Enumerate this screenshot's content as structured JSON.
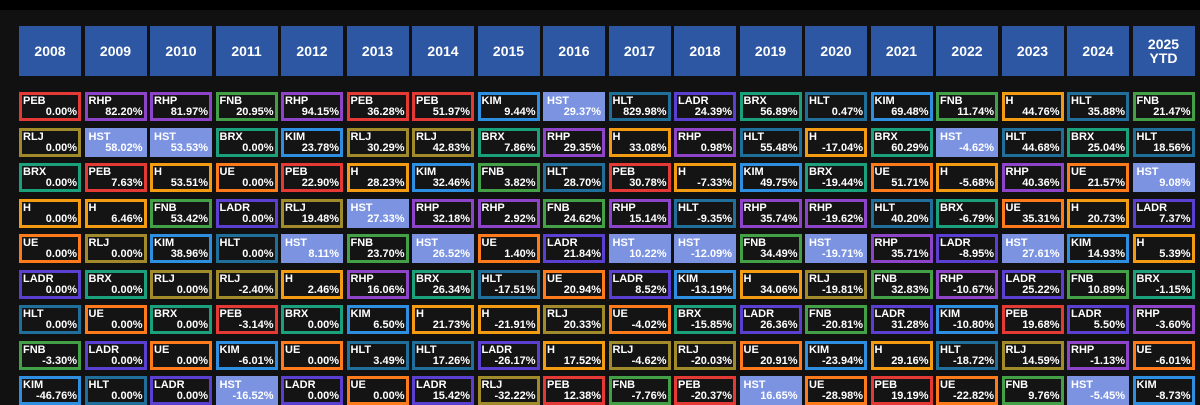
{
  "chart_data": {
    "type": "table",
    "columns": [
      "2008",
      "2009",
      "2010",
      "2011",
      "2012",
      "2013",
      "2014",
      "2015",
      "2016",
      "2017",
      "2018",
      "2019",
      "2020",
      "2021",
      "2022",
      "2023",
      "2024",
      "2025\nYTD"
    ],
    "colors": {
      "PEB": "#e53935",
      "RHP": "#8e44c9",
      "FNB": "#43a047",
      "KIM": "#2e8fe0",
      "HST": "#7b93e0",
      "HLT": "#1f6f9a",
      "LADR": "#5a3fd0",
      "BRX": "#1aa07a",
      "H": "#f39c12",
      "RLJ": "#a08a2a",
      "UE": "#ff7a1a"
    },
    "highlight_ticker": "HST",
    "rows": [
      [
        [
          "PEB",
          "0.00%"
        ],
        [
          "RHP",
          "82.20%"
        ],
        [
          "RHP",
          "81.97%"
        ],
        [
          "FNB",
          "20.95%"
        ],
        [
          "RHP",
          "94.15%"
        ],
        [
          "PEB",
          "36.28%"
        ],
        [
          "PEB",
          "51.97%"
        ],
        [
          "KIM",
          "9.44%"
        ],
        [
          "HST",
          "29.37%"
        ],
        [
          "HLT",
          "829.98%"
        ],
        [
          "LADR",
          "24.39%"
        ],
        [
          "BRX",
          "56.89%"
        ],
        [
          "HLT",
          "0.47%"
        ],
        [
          "KIM",
          "69.48%"
        ],
        [
          "FNB",
          "11.74%"
        ],
        [
          "H",
          "44.76%"
        ],
        [
          "HLT",
          "35.88%"
        ],
        [
          "FNB",
          "21.47%"
        ]
      ],
      [
        [
          "RLJ",
          "0.00%"
        ],
        [
          "HST",
          "58.02%"
        ],
        [
          "HST",
          "53.53%"
        ],
        [
          "BRX",
          "0.00%"
        ],
        [
          "KIM",
          "23.78%"
        ],
        [
          "RLJ",
          "30.29%"
        ],
        [
          "RLJ",
          "42.83%"
        ],
        [
          "BRX",
          "7.86%"
        ],
        [
          "RHP",
          "29.35%"
        ],
        [
          "H",
          "33.08%"
        ],
        [
          "RHP",
          "0.98%"
        ],
        [
          "HLT",
          "55.48%"
        ],
        [
          "H",
          "-17.04%"
        ],
        [
          "BRX",
          "60.29%"
        ],
        [
          "HST",
          "-4.62%"
        ],
        [
          "HLT",
          "44.68%"
        ],
        [
          "BRX",
          "25.04%"
        ],
        [
          "HLT",
          "18.56%"
        ]
      ],
      [
        [
          "BRX",
          "0.00%"
        ],
        [
          "PEB",
          "7.63%"
        ],
        [
          "H",
          "53.51%"
        ],
        [
          "UE",
          "0.00%"
        ],
        [
          "PEB",
          "22.90%"
        ],
        [
          "H",
          "28.23%"
        ],
        [
          "KIM",
          "32.46%"
        ],
        [
          "FNB",
          "3.82%"
        ],
        [
          "HLT",
          "28.70%"
        ],
        [
          "PEB",
          "30.78%"
        ],
        [
          "H",
          "-7.33%"
        ],
        [
          "KIM",
          "49.75%"
        ],
        [
          "BRX",
          "-19.44%"
        ],
        [
          "UE",
          "51.71%"
        ],
        [
          "H",
          "-5.68%"
        ],
        [
          "RHP",
          "40.36%"
        ],
        [
          "UE",
          "21.57%"
        ],
        [
          "HST",
          "9.08%"
        ]
      ],
      [
        [
          "H",
          "0.00%"
        ],
        [
          "H",
          "6.46%"
        ],
        [
          "FNB",
          "53.42%"
        ],
        [
          "LADR",
          "0.00%"
        ],
        [
          "RLJ",
          "19.48%"
        ],
        [
          "HST",
          "27.33%"
        ],
        [
          "RHP",
          "32.18%"
        ],
        [
          "RHP",
          "2.92%"
        ],
        [
          "FNB",
          "24.62%"
        ],
        [
          "RHP",
          "15.14%"
        ],
        [
          "HLT",
          "-9.35%"
        ],
        [
          "RHP",
          "35.74%"
        ],
        [
          "RHP",
          "-19.62%"
        ],
        [
          "HLT",
          "40.20%"
        ],
        [
          "BRX",
          "-6.79%"
        ],
        [
          "UE",
          "35.31%"
        ],
        [
          "H",
          "20.73%"
        ],
        [
          "LADR",
          "7.37%"
        ]
      ],
      [
        [
          "UE",
          "0.00%"
        ],
        [
          "RLJ",
          "0.00%"
        ],
        [
          "KIM",
          "38.96%"
        ],
        [
          "HLT",
          "0.00%"
        ],
        [
          "HST",
          "8.11%"
        ],
        [
          "FNB",
          "23.70%"
        ],
        [
          "HST",
          "26.52%"
        ],
        [
          "UE",
          "1.40%"
        ],
        [
          "LADR",
          "21.84%"
        ],
        [
          "HST",
          "10.22%"
        ],
        [
          "HST",
          "-12.09%"
        ],
        [
          "FNB",
          "34.49%"
        ],
        [
          "HST",
          "-19.71%"
        ],
        [
          "RHP",
          "35.71%"
        ],
        [
          "LADR",
          "-8.95%"
        ],
        [
          "HST",
          "27.61%"
        ],
        [
          "KIM",
          "14.93%"
        ],
        [
          "H",
          "5.39%"
        ]
      ],
      [
        [
          "LADR",
          "0.00%"
        ],
        [
          "BRX",
          "0.00%"
        ],
        [
          "RLJ",
          "0.00%"
        ],
        [
          "RLJ",
          "-2.40%"
        ],
        [
          "H",
          "2.46%"
        ],
        [
          "RHP",
          "16.06%"
        ],
        [
          "BRX",
          "26.34%"
        ],
        [
          "HLT",
          "-17.51%"
        ],
        [
          "UE",
          "20.94%"
        ],
        [
          "LADR",
          "8.52%"
        ],
        [
          "KIM",
          "-13.19%"
        ],
        [
          "H",
          "34.06%"
        ],
        [
          "RLJ",
          "-19.81%"
        ],
        [
          "FNB",
          "32.83%"
        ],
        [
          "RHP",
          "-10.67%"
        ],
        [
          "LADR",
          "25.22%"
        ],
        [
          "FNB",
          "10.89%"
        ],
        [
          "BRX",
          "-1.15%"
        ]
      ],
      [
        [
          "HLT",
          "0.00%"
        ],
        [
          "UE",
          "0.00%"
        ],
        [
          "BRX",
          "0.00%"
        ],
        [
          "PEB",
          "-3.14%"
        ],
        [
          "BRX",
          "0.00%"
        ],
        [
          "KIM",
          "6.50%"
        ],
        [
          "H",
          "21.73%"
        ],
        [
          "H",
          "-21.91%"
        ],
        [
          "RLJ",
          "20.33%"
        ],
        [
          "UE",
          "-4.02%"
        ],
        [
          "BRX",
          "-15.85%"
        ],
        [
          "LADR",
          "26.36%"
        ],
        [
          "FNB",
          "-20.81%"
        ],
        [
          "LADR",
          "31.28%"
        ],
        [
          "KIM",
          "-10.80%"
        ],
        [
          "PEB",
          "19.68%"
        ],
        [
          "LADR",
          "5.50%"
        ],
        [
          "RHP",
          "-3.60%"
        ]
      ],
      [
        [
          "FNB",
          "-3.30%"
        ],
        [
          "LADR",
          "0.00%"
        ],
        [
          "UE",
          "0.00%"
        ],
        [
          "KIM",
          "-6.01%"
        ],
        [
          "UE",
          "0.00%"
        ],
        [
          "HLT",
          "3.49%"
        ],
        [
          "HLT",
          "17.26%"
        ],
        [
          "LADR",
          "-26.17%"
        ],
        [
          "H",
          "17.52%"
        ],
        [
          "RLJ",
          "-4.62%"
        ],
        [
          "RLJ",
          "-20.03%"
        ],
        [
          "UE",
          "20.91%"
        ],
        [
          "KIM",
          "-23.94%"
        ],
        [
          "H",
          "29.16%"
        ],
        [
          "HLT",
          "-18.72%"
        ],
        [
          "RLJ",
          "14.59%"
        ],
        [
          "RHP",
          "-1.13%"
        ],
        [
          "UE",
          "-6.01%"
        ]
      ],
      [
        [
          "KIM",
          "-46.76%"
        ],
        [
          "HLT",
          "0.00%"
        ],
        [
          "LADR",
          "0.00%"
        ],
        [
          "HST",
          "-16.52%"
        ],
        [
          "LADR",
          "0.00%"
        ],
        [
          "UE",
          "0.00%"
        ],
        [
          "LADR",
          "15.42%"
        ],
        [
          "RLJ",
          "-32.22%"
        ],
        [
          "PEB",
          "12.38%"
        ],
        [
          "FNB",
          "-7.76%"
        ],
        [
          "PEB",
          "-20.37%"
        ],
        [
          "HST",
          "16.65%"
        ],
        [
          "UE",
          "-28.98%"
        ],
        [
          "PEB",
          "19.19%"
        ],
        [
          "UE",
          "-22.82%"
        ],
        [
          "FNB",
          "9.76%"
        ],
        [
          "HST",
          "-5.45%"
        ],
        [
          "KIM",
          "-8.73%"
        ]
      ]
    ]
  }
}
